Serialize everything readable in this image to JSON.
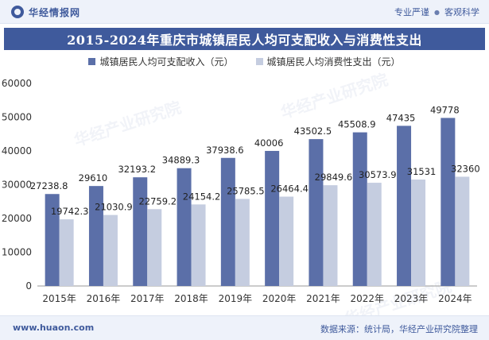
{
  "header": {
    "brand": "华经情报网",
    "tags": [
      "专业严谨",
      "客观科学"
    ]
  },
  "title": "2015-2024年重庆市城镇居民人均可支配收入与消费性支出",
  "legend": [
    {
      "label": "城镇居民人均可支配收入（元）",
      "color": "#5b6fa8"
    },
    {
      "label": "城镇居民人均消费性支出（元）",
      "color": "#c5cde0"
    }
  ],
  "watermark": "华经产业研究院",
  "chart_data": {
    "type": "bar",
    "categories": [
      "2015年",
      "2016年",
      "2017年",
      "2018年",
      "2019年",
      "2020年",
      "2021年",
      "2022年",
      "2023年",
      "2024年"
    ],
    "series": [
      {
        "name": "城镇居民人均可支配收入（元）",
        "values": [
          27238.8,
          29610,
          32193.2,
          34889.3,
          37938.6,
          40006,
          43502.5,
          45508.9,
          47435,
          49778
        ]
      },
      {
        "name": "城镇居民人均消费性支出（元）",
        "values": [
          19742.3,
          21030.9,
          22759.2,
          24154.2,
          25785.5,
          26464.4,
          29849.6,
          30573.9,
          31531,
          32360
        ]
      }
    ],
    "value_labels": [
      [
        "27238.8",
        "29610",
        "32193.2",
        "34889.3",
        "37938.6",
        "40006",
        "43502.5",
        "45508.9",
        "47435",
        "49778"
      ],
      [
        "19742.3",
        "21030.9",
        "22759.2",
        "24154.2",
        "25785.5",
        "26464.4",
        "29849.6",
        "30573.9",
        "31531",
        "32360"
      ]
    ],
    "ylim": [
      0,
      60000
    ],
    "yticks": [
      0,
      10000,
      20000,
      30000,
      40000,
      50000,
      60000
    ],
    "ytick_labels": [
      "0",
      "10000",
      "20000",
      "30000",
      "40000",
      "50000",
      "60000"
    ],
    "grid": false,
    "legend_position": "top-center"
  },
  "footer": {
    "website": "www.huaon.com",
    "source": "数据来源：统计局，华经产业研究院整理"
  }
}
